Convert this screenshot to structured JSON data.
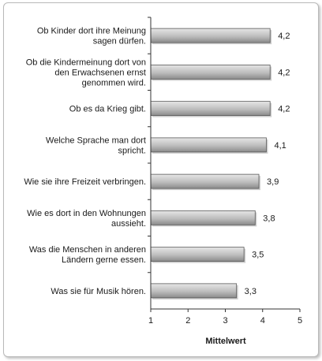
{
  "chart_data": {
    "type": "bar",
    "orientation": "horizontal",
    "categories": [
      "Ob Kinder dort ihre Meinung\nsagen dürfen.",
      "Ob die Kindermeinung dort von\nden Erwachsenen ernst\ngenommen wird.",
      "Ob es da Krieg gibt.",
      "Welche Sprache man dort\nspricht.",
      "Wie sie ihre Freizeit verbringen.",
      "Wie es dort in den Wohnungen\naussieht.",
      "Was die Menschen in anderen\nLändern gerne essen.",
      "Was sie für Musik hören."
    ],
    "values": [
      4.2,
      4.2,
      4.2,
      4.1,
      3.9,
      3.8,
      3.5,
      3.3
    ],
    "value_labels": [
      "4,2",
      "4,2",
      "4,2",
      "4,1",
      "3,9",
      "3,8",
      "3,5",
      "3,3"
    ],
    "xlim": [
      1,
      5
    ],
    "xticks": [
      1,
      2,
      3,
      4,
      5
    ],
    "xlabel": "Mittelwert",
    "grid": false,
    "legend": "none",
    "colors": {
      "bar_light": "#e6e6e6",
      "bar_dark": "#8a8a8a",
      "bar_stroke": "#5a5a5a",
      "axis": "#333333",
      "frame": "#b9b9b9"
    }
  }
}
